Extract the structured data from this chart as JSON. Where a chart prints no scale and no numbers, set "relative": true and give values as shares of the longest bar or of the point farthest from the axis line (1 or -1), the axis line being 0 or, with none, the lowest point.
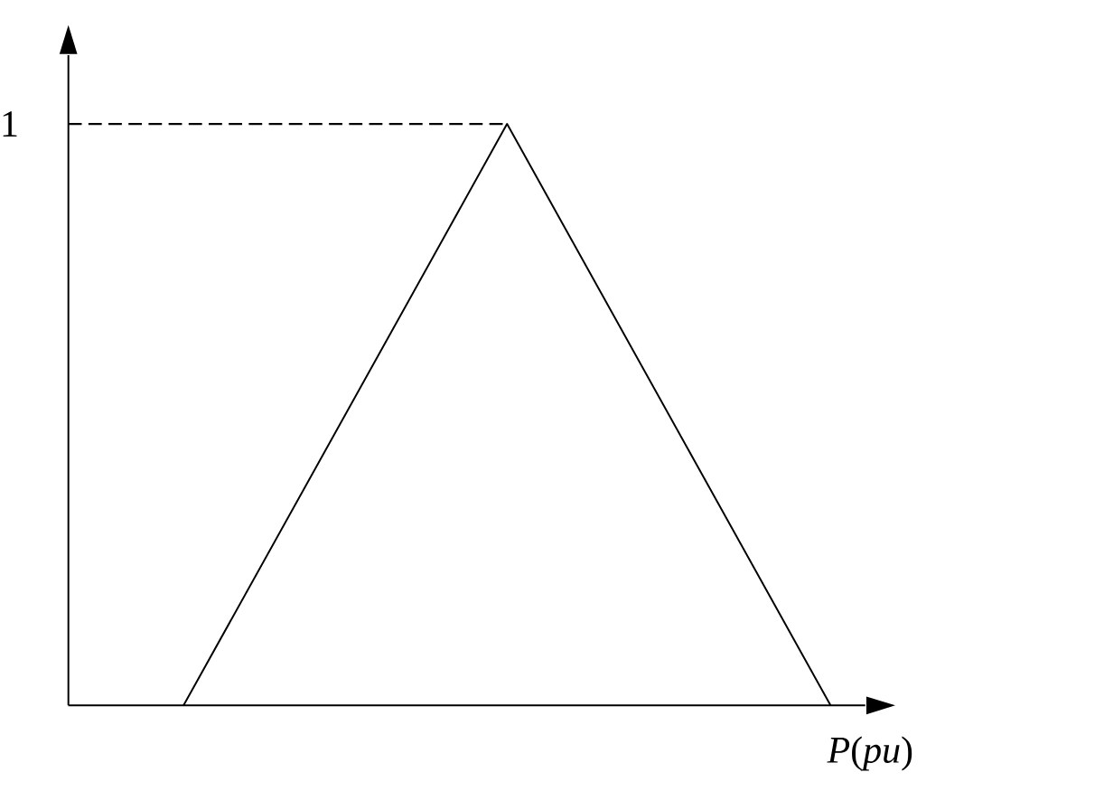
{
  "chart_data": {
    "type": "line",
    "relative": true,
    "xlabel": "*P*(*pu*)",
    "categories": [
      null,
      null,
      null
    ],
    "series": [
      {
        "color": "#000000",
        "values": [
          0,
          1,
          0
        ]
      }
    ],
    "ref_lines": [
      {
        "axis": "y",
        "value": 1,
        "label": "1",
        "line_style": "dashed"
      }
    ],
    "marker": "none",
    "line_style": "solid"
  }
}
